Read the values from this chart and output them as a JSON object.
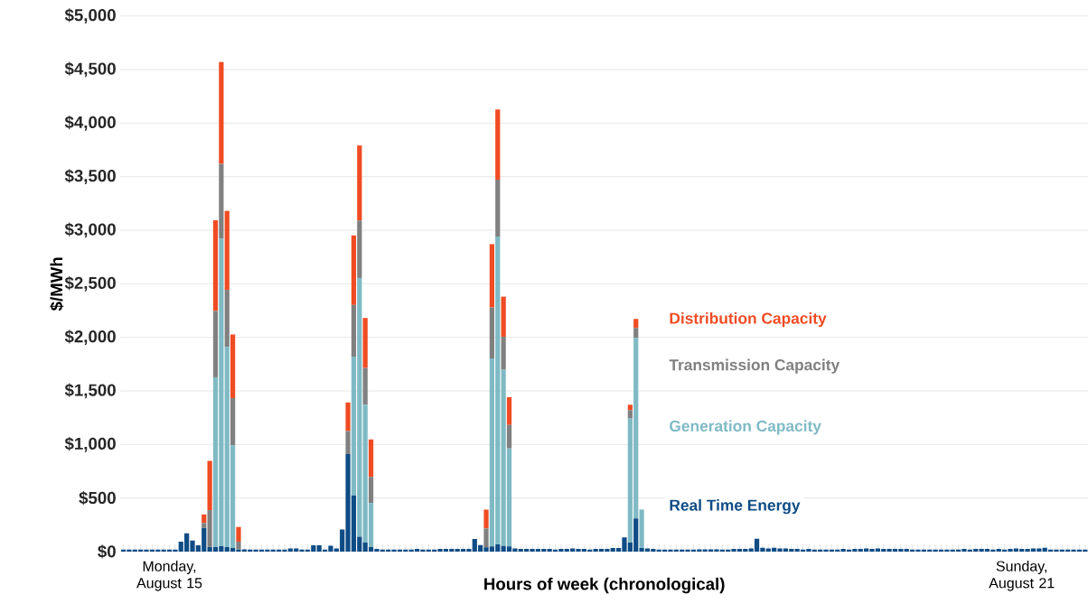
{
  "chart_data": {
    "type": "bar",
    "stacked": true,
    "xlabel": "Hours of week (chronological)",
    "ylabel": "$/MWh",
    "categories": [
      null,
      null,
      null,
      null,
      null,
      null,
      null,
      null,
      "Monday, August 15",
      null,
      null,
      null,
      null,
      null,
      null,
      null,
      null,
      null,
      null,
      null,
      null,
      null,
      null,
      null,
      null,
      null,
      null,
      null,
      null,
      null,
      null,
      null,
      null,
      null,
      null,
      null,
      null,
      null,
      null,
      null,
      null,
      null,
      null,
      null,
      null,
      null,
      null,
      null,
      null,
      null,
      null,
      null,
      null,
      null,
      null,
      null,
      null,
      null,
      null,
      null,
      null,
      null,
      null,
      null,
      null,
      null,
      null,
      null,
      null,
      null,
      null,
      null,
      null,
      null,
      null,
      null,
      null,
      null,
      null,
      null,
      null,
      null,
      null,
      null,
      null,
      null,
      null,
      null,
      null,
      null,
      null,
      null,
      null,
      null,
      null,
      null,
      null,
      null,
      null,
      null,
      null,
      null,
      null,
      null,
      null,
      null,
      null,
      null,
      null,
      null,
      null,
      null,
      null,
      null,
      null,
      null,
      null,
      null,
      null,
      null,
      null,
      null,
      null,
      null,
      null,
      null,
      null,
      null,
      null,
      null,
      null,
      null,
      null,
      null,
      null,
      null,
      null,
      null,
      null,
      null,
      null,
      null,
      null,
      null,
      null,
      null,
      null,
      null,
      null,
      null,
      null,
      null,
      null,
      null,
      null,
      null,
      "Sunday, August 21",
      null,
      null,
      null,
      null,
      null,
      null,
      null,
      null,
      null,
      null,
      null
    ],
    "ylim": [
      0,
      5000
    ],
    "yticks": [
      {
        "value": 0,
        "label": "$0"
      },
      {
        "value": 500,
        "label": "$500"
      },
      {
        "value": 1000,
        "label": "$1,000"
      },
      {
        "value": 1500,
        "label": "$1,500"
      },
      {
        "value": 2000,
        "label": "$2,000"
      },
      {
        "value": 2500,
        "label": "$2,500"
      },
      {
        "value": 3000,
        "label": "$3,000"
      },
      {
        "value": 3500,
        "label": "$3,500"
      },
      {
        "value": 4000,
        "label": "$4,000"
      },
      {
        "value": 4500,
        "label": "$4,500"
      },
      {
        "value": 5000,
        "label": "$5,000"
      }
    ],
    "grid": "y",
    "series": [
      {
        "name": "Real Time Energy",
        "color": "#0f4c85",
        "values": [
          20,
          20,
          20,
          20,
          20,
          20,
          20,
          20,
          20,
          20,
          93,
          170,
          103,
          60,
          220,
          43,
          43,
          50,
          43,
          33,
          20,
          22,
          20,
          20,
          20,
          20,
          20,
          20,
          20,
          30,
          30,
          20,
          20,
          58,
          58,
          20,
          55,
          30,
          207,
          910,
          524,
          140,
          84,
          42,
          25,
          20,
          20,
          20,
          20,
          20,
          20,
          25,
          20,
          20,
          20,
          25,
          25,
          25,
          25,
          25,
          25,
          118,
          62,
          39,
          48,
          67,
          53,
          48,
          30,
          25,
          25,
          25,
          25,
          25,
          25,
          20,
          25,
          25,
          30,
          25,
          25,
          20,
          25,
          25,
          25,
          34,
          34,
          132,
          84,
          309,
          34,
          30,
          25,
          20,
          20,
          20,
          20,
          20,
          20,
          20,
          22,
          22,
          22,
          22,
          20,
          20,
          25,
          25,
          25,
          30,
          120,
          35,
          30,
          35,
          30,
          30,
          25,
          25,
          20,
          25,
          20,
          20,
          20,
          20,
          20,
          25,
          20,
          25,
          25,
          30,
          25,
          30,
          25,
          25,
          25,
          25,
          25,
          20,
          20,
          20,
          20,
          20,
          20,
          20,
          20,
          20,
          25,
          20,
          25,
          25,
          25,
          20,
          25,
          20,
          25,
          30,
          25,
          25,
          30,
          30,
          35,
          20,
          20,
          20,
          20,
          20,
          20,
          20
        ]
      },
      {
        "name": "Generation Capacity",
        "color": "#7fbac4",
        "values": [
          0,
          0,
          0,
          0,
          0,
          0,
          0,
          0,
          0,
          0,
          0,
          0,
          0,
          0,
          0,
          0,
          1584,
          2870,
          1867,
          960,
          0,
          0,
          0,
          0,
          0,
          0,
          0,
          0,
          0,
          0,
          0,
          0,
          0,
          0,
          0,
          0,
          0,
          0,
          0,
          0,
          1296,
          2414,
          1288,
          412,
          0,
          0,
          0,
          0,
          0,
          0,
          0,
          0,
          0,
          0,
          0,
          0,
          0,
          0,
          0,
          0,
          0,
          0,
          0,
          0,
          1755,
          2873,
          1644,
          915,
          0,
          0,
          0,
          0,
          0,
          0,
          0,
          0,
          0,
          0,
          0,
          0,
          0,
          0,
          0,
          0,
          0,
          0,
          0,
          0,
          1158,
          1686,
          359,
          0,
          0,
          0,
          0,
          0,
          0,
          0,
          0,
          0,
          0,
          0,
          0,
          0,
          0,
          0,
          0,
          0,
          0,
          0,
          0,
          0,
          0,
          0,
          0,
          0,
          0,
          0,
          0,
          0,
          0,
          0,
          0,
          0,
          0,
          0,
          0,
          0,
          0,
          0,
          0,
          0,
          0,
          0,
          0,
          0,
          0,
          0,
          0,
          0,
          0,
          0,
          0,
          0,
          0,
          0,
          0,
          0,
          0,
          0,
          0,
          0,
          0,
          0,
          0,
          0,
          0,
          0,
          0,
          0,
          0,
          0,
          0,
          0,
          0,
          0,
          0,
          0
        ]
      },
      {
        "name": "Transmission Capacity",
        "color": "#808080",
        "values": [
          0,
          0,
          0,
          0,
          0,
          0,
          0,
          0,
          0,
          0,
          0,
          0,
          0,
          0,
          47,
          344,
          620,
          700,
          533,
          440,
          73,
          0,
          0,
          0,
          0,
          0,
          0,
          0,
          0,
          0,
          0,
          0,
          0,
          0,
          0,
          0,
          0,
          0,
          0,
          216,
          482,
          537,
          342,
          243,
          0,
          0,
          0,
          0,
          0,
          0,
          0,
          0,
          0,
          0,
          0,
          0,
          0,
          0,
          0,
          0,
          0,
          0,
          0,
          177,
          476,
          532,
          308,
          219,
          0,
          0,
          0,
          0,
          0,
          0,
          0,
          0,
          0,
          0,
          0,
          0,
          0,
          0,
          0,
          0,
          0,
          0,
          0,
          0,
          79,
          93,
          0,
          0,
          0,
          0,
          0,
          0,
          0,
          0,
          0,
          0,
          0,
          0,
          0,
          0,
          0,
          0,
          0,
          0,
          0,
          0,
          0,
          0,
          0,
          0,
          0,
          0,
          0,
          0,
          0,
          0,
          0,
          0,
          0,
          0,
          0,
          0,
          0,
          0,
          0,
          0,
          0,
          0,
          0,
          0,
          0,
          0,
          0,
          0,
          0,
          0,
          0,
          0,
          0,
          0,
          0,
          0,
          0,
          0,
          0,
          0,
          0,
          0,
          0,
          0,
          0,
          0,
          0,
          0,
          0,
          0,
          0,
          0,
          0,
          0,
          0,
          0,
          0,
          0
        ]
      },
      {
        "name": "Distribution Capacity",
        "color": "#f04b23",
        "values": [
          0,
          0,
          0,
          0,
          0,
          0,
          0,
          0,
          0,
          0,
          0,
          0,
          0,
          0,
          80,
          460,
          846,
          950,
          737,
          594,
          137,
          0,
          0,
          0,
          0,
          0,
          0,
          0,
          0,
          0,
          0,
          0,
          0,
          0,
          0,
          0,
          0,
          0,
          0,
          266,
          649,
          700,
          467,
          350,
          0,
          0,
          0,
          0,
          0,
          0,
          0,
          0,
          0,
          0,
          0,
          0,
          0,
          0,
          0,
          0,
          0,
          0,
          0,
          176,
          591,
          655,
          375,
          260,
          0,
          0,
          0,
          0,
          0,
          0,
          0,
          0,
          0,
          0,
          0,
          0,
          0,
          0,
          0,
          0,
          0,
          0,
          0,
          0,
          50,
          84,
          0,
          0,
          0,
          0,
          0,
          0,
          0,
          0,
          0,
          0,
          0,
          0,
          0,
          0,
          0,
          0,
          0,
          0,
          0,
          0,
          0,
          0,
          0,
          0,
          0,
          0,
          0,
          0,
          0,
          0,
          0,
          0,
          0,
          0,
          0,
          0,
          0,
          0,
          0,
          0,
          0,
          0,
          0,
          0,
          0,
          0,
          0,
          0,
          0,
          0,
          0,
          0,
          0,
          0,
          0,
          0,
          0,
          0,
          0,
          0,
          0,
          0,
          0,
          0,
          0,
          0,
          0,
          0,
          0,
          0,
          0,
          0,
          0,
          0,
          0,
          0,
          0,
          0
        ]
      }
    ]
  }
}
